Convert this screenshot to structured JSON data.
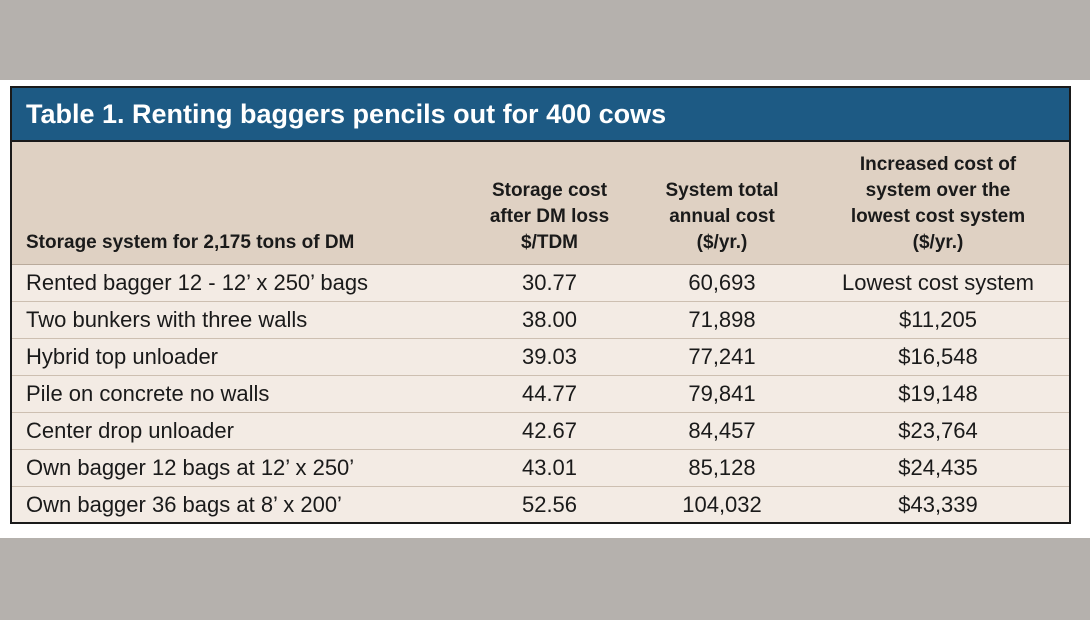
{
  "title": "Table 1. Renting baggers pencils out for 400 cows",
  "headers": {
    "col1": [
      "Storage system for 2,175 tons of DM"
    ],
    "col2": [
      "Storage cost",
      "after DM loss",
      "$/TDM"
    ],
    "col3": [
      "System total",
      "annual cost",
      "($/yr.)"
    ],
    "col4": [
      "Increased cost of",
      "system over the",
      "lowest cost system",
      "($/yr.)"
    ]
  },
  "rows": [
    {
      "system": "Rented bagger 12 - 12’ x 250’ bags",
      "storage_cost": "30.77",
      "annual_cost": "60,693",
      "increased_cost": "Lowest cost system"
    },
    {
      "system": "Two bunkers with three walls",
      "storage_cost": "38.00",
      "annual_cost": "71,898",
      "increased_cost": "$11,205"
    },
    {
      "system": "Hybrid top unloader",
      "storage_cost": "39.03",
      "annual_cost": "77,241",
      "increased_cost": "$16,548"
    },
    {
      "system": "Pile on concrete no walls",
      "storage_cost": "44.77",
      "annual_cost": "79,841",
      "increased_cost": "$19,148"
    },
    {
      "system": "Center drop unloader",
      "storage_cost": "42.67",
      "annual_cost": "84,457",
      "increased_cost": "$23,764"
    },
    {
      "system": "Own bagger 12 bags at 12’ x 250’",
      "storage_cost": "43.01",
      "annual_cost": "85,128",
      "increased_cost": "$24,435"
    },
    {
      "system": "Own bagger 36 bags at 8’ x 200’",
      "storage_cost": "52.56",
      "annual_cost": "104,032",
      "increased_cost": "$43,339"
    }
  ],
  "colors": {
    "title_bar": "#1d5a84",
    "header_bg": "#dfd1c3",
    "body_bg": "#f3ebe4",
    "page_bg": "#b5b1ad"
  }
}
